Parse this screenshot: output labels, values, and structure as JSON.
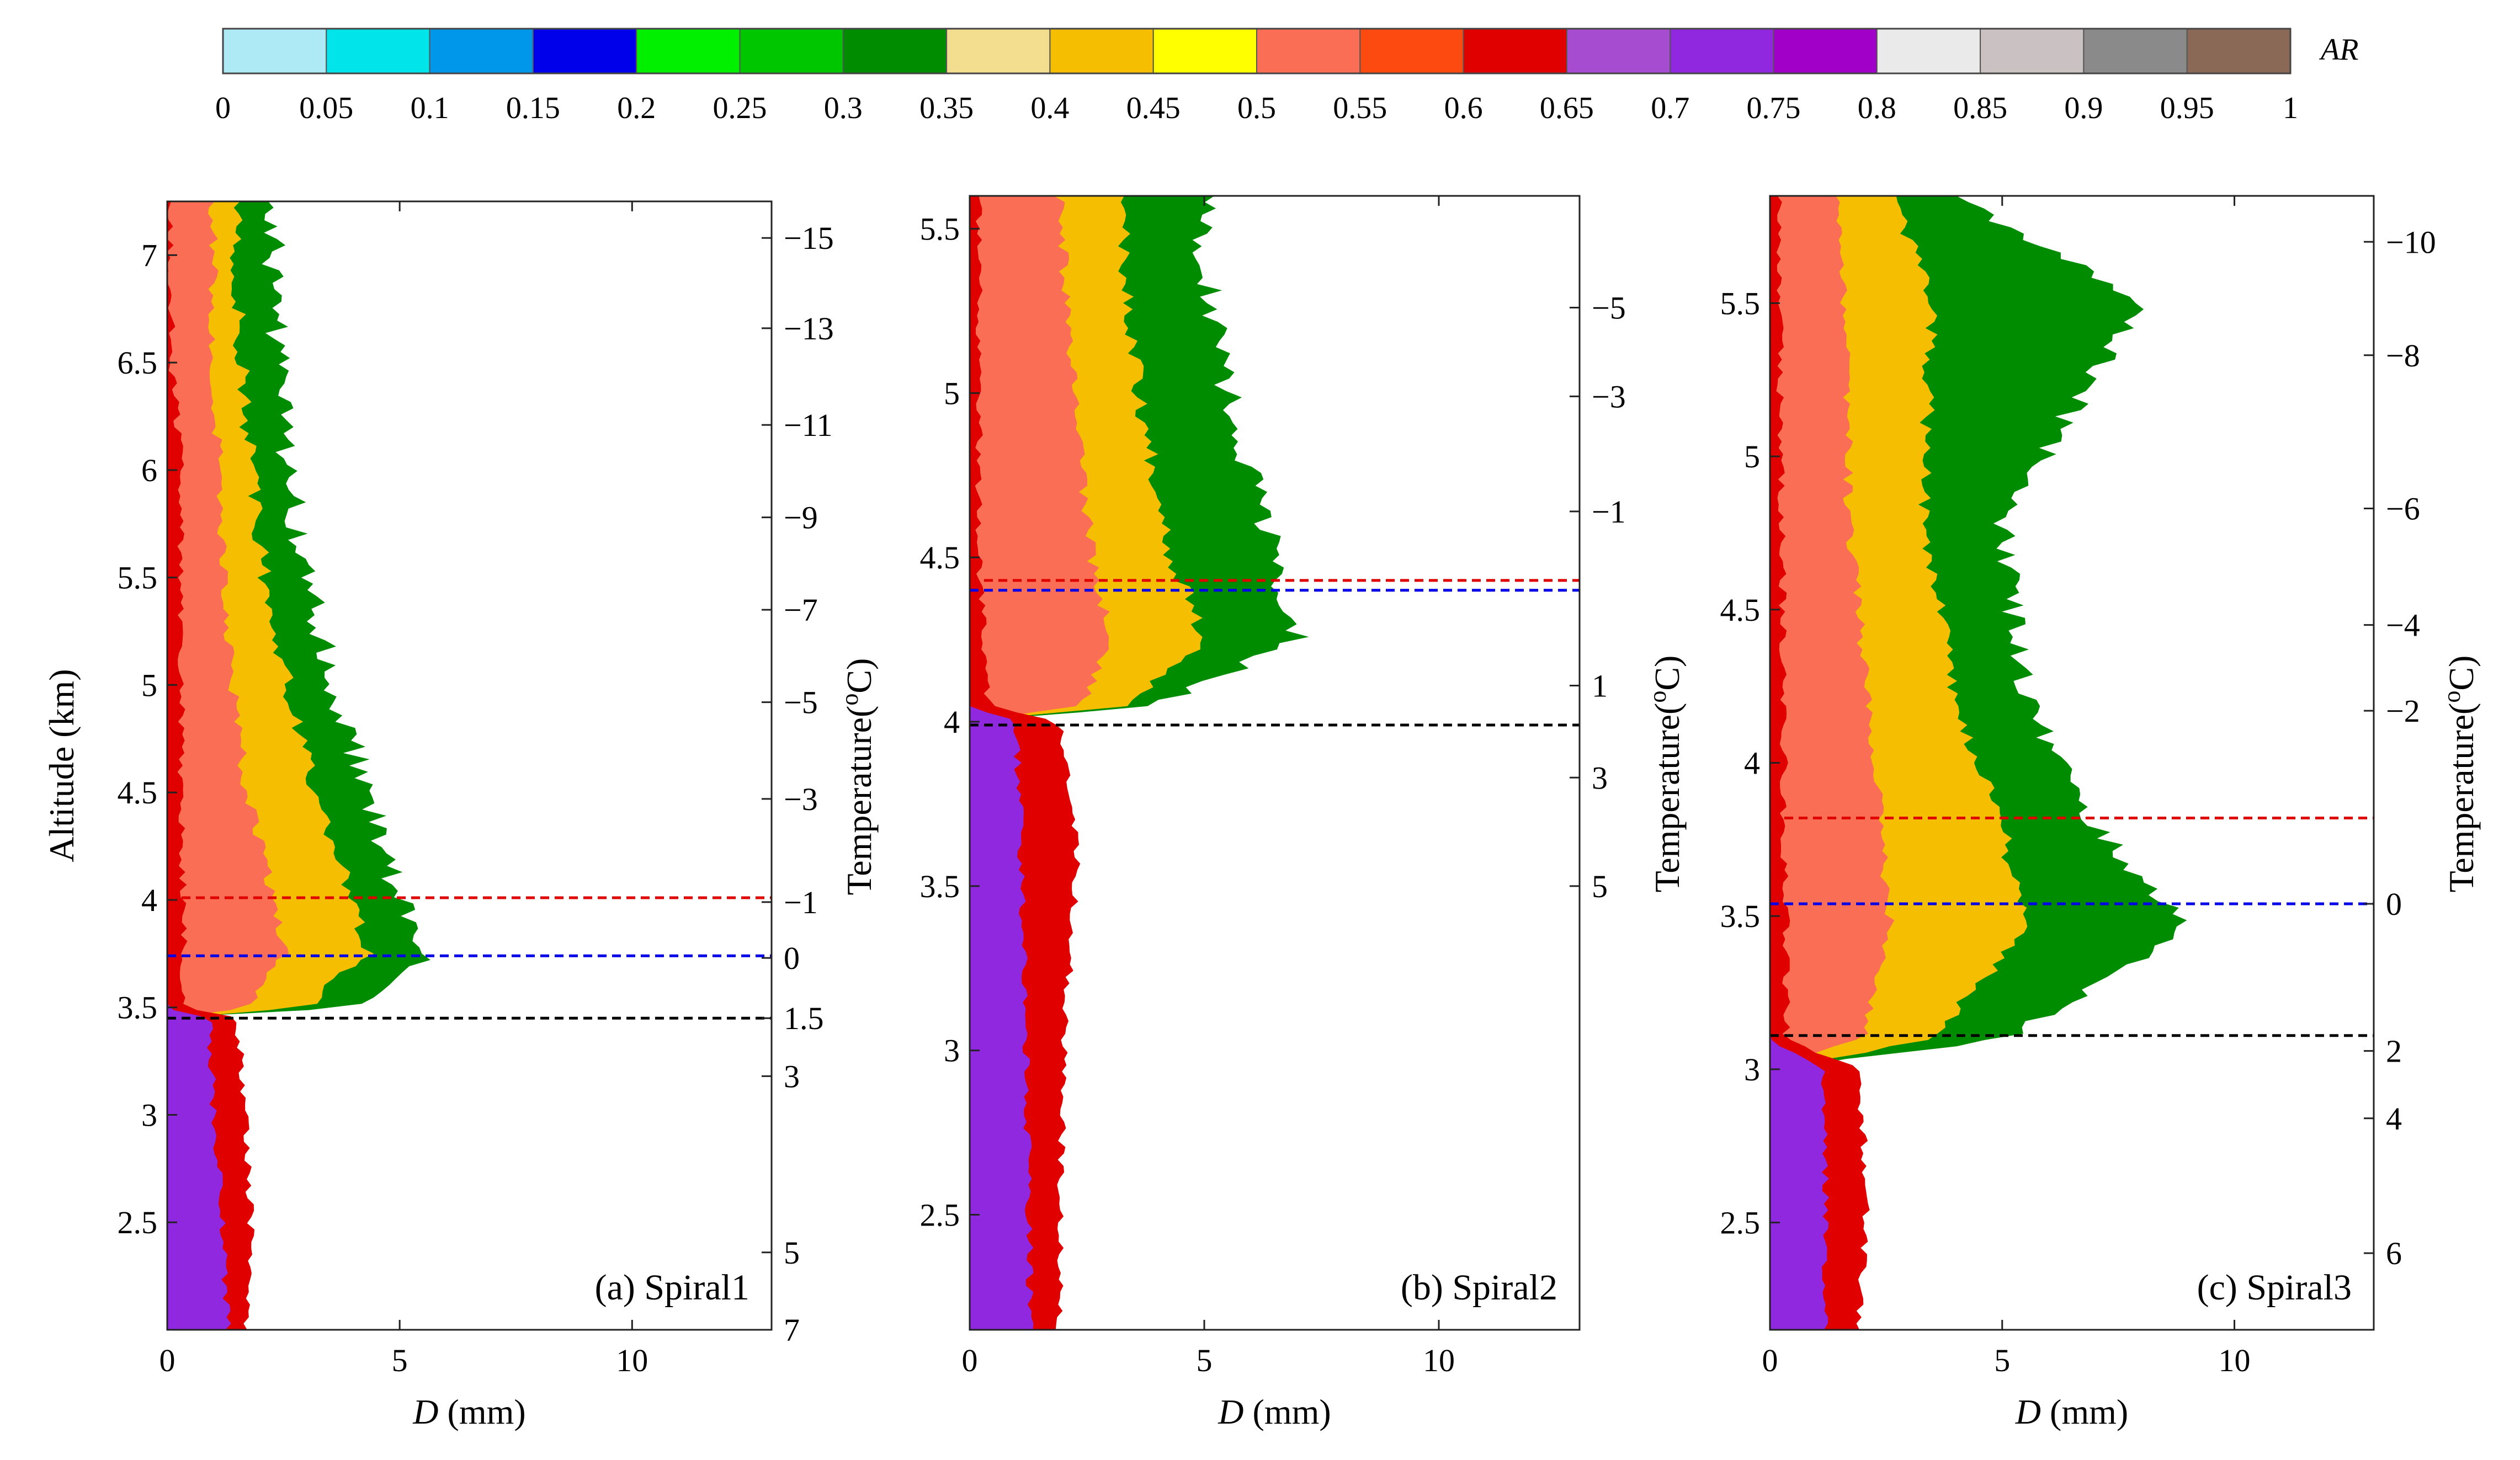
{
  "colorbar": {
    "label": "AR",
    "tick_labels": [
      "0",
      "0.05",
      "0.1",
      "0.15",
      "0.2",
      "0.25",
      "0.3",
      "0.35",
      "0.4",
      "0.45",
      "0.5",
      "0.55",
      "0.6",
      "0.65",
      "0.7",
      "0.75",
      "0.8",
      "0.85",
      "0.9",
      "0.95",
      "1"
    ],
    "colors": [
      "#aeeaf6",
      "#00e4ea",
      "#0096ea",
      "#0000ea",
      "#00f000",
      "#00c600",
      "#008c00",
      "#f2de8e",
      "#f5be00",
      "#ffff00",
      "#fa6e55",
      "#fc4a10",
      "#e00000",
      "#a64cd0",
      "#9028e0",
      "#a000c8",
      "#eaeaea",
      "#cac2c2",
      "#8a8a8a",
      "#8a6a56"
    ]
  },
  "chart_data": [
    {
      "type": "heatmap",
      "panel_label": "(a) Spiral1",
      "x_label_var": "D",
      "x_label_unit": " (mm)",
      "y_label": "Altitude (km)",
      "y2_label": "Temperature( °C)",
      "y2_label_base": "Temperature(",
      "y2_label_sup": "o",
      "y2_label_end": "C)",
      "xlim": [
        0,
        13
      ],
      "ylim": [
        2.0,
        7.25
      ],
      "x_ticks": [
        0,
        5,
        10
      ],
      "x_tick_labels": [
        "0",
        "5",
        "10"
      ],
      "y_ticks": [
        2.5,
        3,
        3.5,
        4,
        4.5,
        5,
        5.5,
        6,
        6.5,
        7
      ],
      "y_tick_labels": [
        "2.5",
        "3",
        "3.5",
        "4",
        "4.5",
        "5",
        "5.5",
        "6",
        "6.5",
        "7"
      ],
      "temp_ticks": [
        {
          "alt": 7.08,
          "label": "−15"
        },
        {
          "alt": 6.66,
          "label": "−13"
        },
        {
          "alt": 6.21,
          "label": "−11"
        },
        {
          "alt": 5.78,
          "label": "−9"
        },
        {
          "alt": 5.35,
          "label": "−7"
        },
        {
          "alt": 4.92,
          "label": "−5"
        },
        {
          "alt": 4.47,
          "label": "−3"
        },
        {
          "alt": 3.99,
          "label": "−1"
        },
        {
          "alt": 3.73,
          "label": "0"
        },
        {
          "alt": 3.45,
          "label": "1.5"
        },
        {
          "alt": 3.18,
          "label": "3"
        },
        {
          "alt": 2.36,
          "label": "5"
        },
        {
          "alt": 2.0,
          "label": "7"
        }
      ],
      "hlines": [
        {
          "alt": 4.01,
          "color": "#e00000"
        },
        {
          "alt": 3.74,
          "color": "#0000ea"
        },
        {
          "alt": 3.45,
          "color": "#000000"
        }
      ],
      "bright_band_alt": 3.45,
      "profile": [
        {
          "alt": 2.0,
          "purple": 1.3,
          "red": 1.7,
          "orange": 0,
          "yellow": 0,
          "green": 0
        },
        {
          "alt": 2.5,
          "purple": 1.2,
          "red": 1.8,
          "orange": 0,
          "yellow": 0,
          "green": 0
        },
        {
          "alt": 3.0,
          "purple": 1.0,
          "red": 1.7,
          "orange": 0,
          "yellow": 0,
          "green": 0
        },
        {
          "alt": 3.45,
          "purple": 0.9,
          "red": 1.5,
          "orange": 0,
          "yellow": 0,
          "green": 0
        },
        {
          "alt": 3.5,
          "purple": 0,
          "red": 0.35,
          "orange": 1.8,
          "yellow": 3.0,
          "green": 3.9
        },
        {
          "alt": 3.75,
          "purple": 0,
          "red": 0.35,
          "orange": 2.5,
          "yellow": 4.3,
          "green": 5.6
        },
        {
          "alt": 4.0,
          "purple": 0,
          "red": 0.35,
          "orange": 2.3,
          "yellow": 4.0,
          "green": 5.0
        },
        {
          "alt": 4.5,
          "purple": 0,
          "red": 0.3,
          "orange": 1.7,
          "yellow": 3.2,
          "green": 4.3
        },
        {
          "alt": 5.0,
          "purple": 0,
          "red": 0.3,
          "orange": 1.4,
          "yellow": 2.6,
          "green": 3.6
        },
        {
          "alt": 5.5,
          "purple": 0,
          "red": 0.3,
          "orange": 1.2,
          "yellow": 2.1,
          "green": 3.0
        },
        {
          "alt": 6.0,
          "purple": 0,
          "red": 0.3,
          "orange": 1.1,
          "yellow": 1.8,
          "green": 2.6
        },
        {
          "alt": 6.5,
          "purple": 0,
          "red": 0.1,
          "orange": 1.0,
          "yellow": 1.6,
          "green": 2.4
        },
        {
          "alt": 7.0,
          "purple": 0,
          "red": 0.05,
          "orange": 1.0,
          "yellow": 1.5,
          "green": 2.3
        },
        {
          "alt": 7.25,
          "purple": 0,
          "red": 0.05,
          "orange": 1.0,
          "yellow": 1.5,
          "green": 2.3
        }
      ]
    },
    {
      "type": "heatmap",
      "panel_label": "(b) Spiral2",
      "x_label_var": "D",
      "x_label_unit": " (mm)",
      "y_label": "",
      "y2_label": "Temperature( °C)",
      "y2_label_base": "Temperature(",
      "y2_label_sup": "o",
      "y2_label_end": "C)",
      "xlim": [
        0,
        13
      ],
      "ylim": [
        2.15,
        5.6
      ],
      "x_ticks": [
        0,
        5,
        10
      ],
      "x_tick_labels": [
        "0",
        "5",
        "10"
      ],
      "y_ticks": [
        2.5,
        3,
        3.5,
        4,
        4.5,
        5,
        5.5
      ],
      "y_tick_labels": [
        "2.5",
        "3",
        "3.5",
        "4",
        "4.5",
        "5",
        "5.5"
      ],
      "temp_ticks": [
        {
          "alt": 5.26,
          "label": "−5"
        },
        {
          "alt": 4.99,
          "label": "−3"
        },
        {
          "alt": 4.64,
          "label": "−1"
        },
        {
          "alt": 4.11,
          "label": "1"
        },
        {
          "alt": 3.83,
          "label": "3"
        },
        {
          "alt": 3.5,
          "label": "5"
        }
      ],
      "hlines": [
        {
          "alt": 4.43,
          "color": "#e00000"
        },
        {
          "alt": 4.4,
          "color": "#0000ea"
        },
        {
          "alt": 3.99,
          "color": "#000000"
        }
      ],
      "bright_band_alt": 4.05,
      "profile": [
        {
          "alt": 2.15,
          "purple": 1.3,
          "red": 1.9,
          "orange": 0,
          "yellow": 0,
          "green": 0
        },
        {
          "alt": 3.0,
          "purple": 1.2,
          "red": 2.0,
          "orange": 0,
          "yellow": 0,
          "green": 0
        },
        {
          "alt": 3.6,
          "purple": 1.1,
          "red": 2.3,
          "orange": 0,
          "yellow": 0,
          "green": 0
        },
        {
          "alt": 4.0,
          "purple": 1.0,
          "red": 1.9,
          "orange": 0,
          "yellow": 0,
          "green": 0
        },
        {
          "alt": 4.05,
          "purple": 0,
          "red": 0.4,
          "orange": 2.4,
          "yellow": 3.4,
          "green": 4.0
        },
        {
          "alt": 4.25,
          "purple": 0,
          "red": 0.3,
          "orange": 3.0,
          "yellow": 5.0,
          "green": 7.0
        },
        {
          "alt": 4.5,
          "purple": 0,
          "red": 0.2,
          "orange": 2.6,
          "yellow": 4.3,
          "green": 6.5
        },
        {
          "alt": 5.0,
          "purple": 0,
          "red": 0.2,
          "orange": 2.2,
          "yellow": 3.6,
          "green": 5.5
        },
        {
          "alt": 5.4,
          "purple": 0,
          "red": 0.2,
          "orange": 2.0,
          "yellow": 3.3,
          "green": 5.0
        },
        {
          "alt": 5.6,
          "purple": 0,
          "red": 0.2,
          "orange": 1.9,
          "yellow": 3.2,
          "green": 5.0
        }
      ]
    },
    {
      "type": "heatmap",
      "panel_label": "(c) Spiral3",
      "x_label_var": "D",
      "x_label_unit": " (mm)",
      "y_label": "",
      "y2_label": "Temperature( °C)",
      "y2_label_base": "Temperature(",
      "y2_label_sup": "o",
      "y2_label_end": "C)",
      "xlim": [
        0,
        13
      ],
      "ylim": [
        2.15,
        5.85
      ],
      "x_ticks": [
        0,
        5,
        10
      ],
      "x_tick_labels": [
        "0",
        "5",
        "10"
      ],
      "y_ticks": [
        2.5,
        3,
        3.5,
        4,
        4.5,
        5,
        5.5
      ],
      "y_tick_labels": [
        "2.5",
        "3",
        "3.5",
        "4",
        "4.5",
        "5",
        "5.5"
      ],
      "temp_ticks": [
        {
          "alt": 5.7,
          "label": "−10"
        },
        {
          "alt": 5.33,
          "label": "−8"
        },
        {
          "alt": 4.83,
          "label": "−6"
        },
        {
          "alt": 4.45,
          "label": "−4"
        },
        {
          "alt": 4.17,
          "label": "−2"
        },
        {
          "alt": 3.54,
          "label": "0"
        },
        {
          "alt": 3.06,
          "label": "2"
        },
        {
          "alt": 2.84,
          "label": "4"
        },
        {
          "alt": 2.4,
          "label": "6"
        }
      ],
      "hlines": [
        {
          "alt": 3.82,
          "color": "#e00000"
        },
        {
          "alt": 3.54,
          "color": "#0000ea"
        },
        {
          "alt": 3.11,
          "color": "#000000"
        }
      ],
      "bright_band_alt": 3.12,
      "profile": [
        {
          "alt": 2.15,
          "purple": 1.2,
          "red": 1.9,
          "orange": 0,
          "yellow": 0,
          "green": 0
        },
        {
          "alt": 2.6,
          "purple": 1.2,
          "red": 2.1,
          "orange": 0,
          "yellow": 0,
          "green": 0
        },
        {
          "alt": 3.0,
          "purple": 1.1,
          "red": 1.9,
          "orange": 0,
          "yellow": 0,
          "green": 0
        },
        {
          "alt": 3.1,
          "purple": 0,
          "red": 0.35,
          "orange": 2.0,
          "yellow": 3.5,
          "green": 5.0
        },
        {
          "alt": 3.45,
          "purple": 0,
          "red": 0.35,
          "orange": 2.6,
          "yellow": 5.5,
          "green": 9.0
        },
        {
          "alt": 3.8,
          "purple": 0,
          "red": 0.3,
          "orange": 2.4,
          "yellow": 5.0,
          "green": 7.0
        },
        {
          "alt": 4.2,
          "purple": 0,
          "red": 0.3,
          "orange": 2.1,
          "yellow": 4.0,
          "green": 5.5
        },
        {
          "alt": 4.8,
          "purple": 0,
          "red": 0.25,
          "orange": 1.7,
          "yellow": 3.3,
          "green": 5.0
        },
        {
          "alt": 5.5,
          "purple": 0,
          "red": 0.2,
          "orange": 1.6,
          "yellow": 3.5,
          "green": 8.0
        },
        {
          "alt": 5.85,
          "purple": 0,
          "red": 0.2,
          "orange": 1.4,
          "yellow": 2.6,
          "green": 4.0
        }
      ]
    }
  ]
}
